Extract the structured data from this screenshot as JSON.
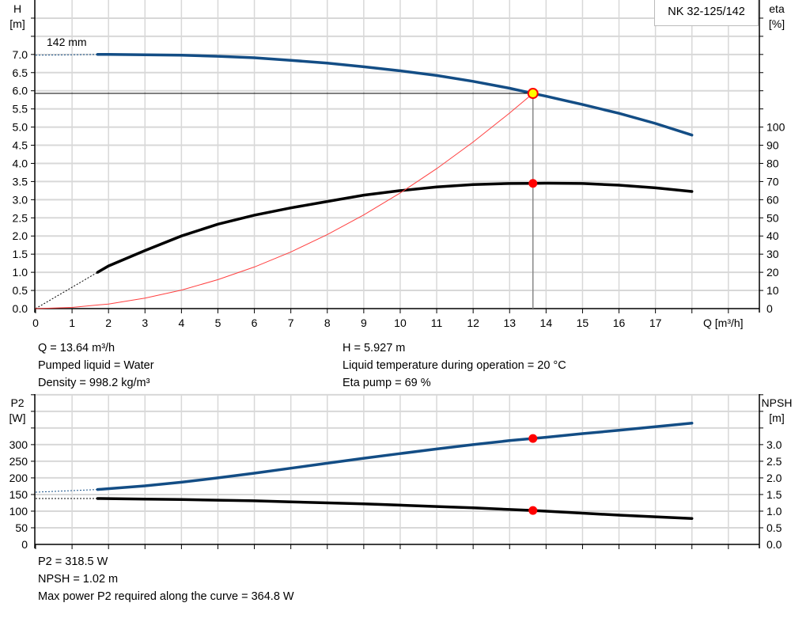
{
  "model": "NK 32-125/142",
  "impeller_label": "142 mm",
  "colors": {
    "head": "#134d85",
    "eta": "#000000",
    "system": "#ff4040",
    "p2": "#134d85",
    "npsh": "#000000",
    "grid": "#d8d8d8",
    "point_fill": "#ffff00",
    "point_edge": "#ff0000",
    "marker": "#ff0000"
  },
  "info_top": {
    "q": "Q = 13.64 m³/h",
    "liquid": "Pumped liquid = Water",
    "density": "Density = 998.2 kg/m³",
    "h": "H = 5.927 m",
    "temp": "Liquid temperature during operation = 20 °C",
    "eta": "Eta pump = 69 %"
  },
  "info_bottom": {
    "p2": "P2 = 318.5 W",
    "npsh": "NPSH = 1.02 m",
    "max_p2": "Max power P2 required along the curve = 364.8 W"
  },
  "chart_data": [
    {
      "type": "line",
      "xlabel": "Q [m³/h]",
      "ylabel": "H\n[m]",
      "ylabel_right": "eta\n[%]",
      "xlim": [
        0,
        19.85
      ],
      "ylim": [
        0,
        8.5
      ],
      "ylim_right": [
        0,
        170
      ],
      "grid": true,
      "x_ticks": [
        "0",
        "1",
        "2",
        "3",
        "4",
        "5",
        "6",
        "7",
        "8",
        "9",
        "10",
        "11",
        "12",
        "13",
        "14",
        "15",
        "16",
        "17"
      ],
      "y_ticks": [
        "0.0",
        "0.5",
        "1.0",
        "1.5",
        "2.0",
        "2.5",
        "3.0",
        "3.5",
        "4.0",
        "4.5",
        "5.0",
        "5.5",
        "6.0",
        "6.5",
        "7.0"
      ],
      "y_ticks_right": [
        "0",
        "10",
        "20",
        "30",
        "40",
        "50",
        "60",
        "70",
        "80",
        "90",
        "100"
      ],
      "series": [
        {
          "key": "head",
          "axis": "left",
          "x": [
            1.7,
            2,
            3,
            4,
            5,
            6,
            7,
            8,
            9,
            10,
            11,
            12,
            13,
            13.64,
            14,
            15,
            16,
            17,
            18
          ],
          "y": [
            7.0,
            7.0,
            6.99,
            6.98,
            6.95,
            6.91,
            6.84,
            6.76,
            6.66,
            6.55,
            6.42,
            6.26,
            6.07,
            5.927,
            5.85,
            5.62,
            5.38,
            5.1,
            4.78
          ],
          "extrapolated": {
            "x": [
              0,
              1.7
            ],
            "y": [
              6.98,
              7.0
            ]
          }
        },
        {
          "key": "eta",
          "axis": "right",
          "x": [
            1.7,
            2,
            3,
            4,
            5,
            6,
            7,
            8,
            9,
            10,
            11,
            12,
            13,
            13.64,
            14,
            15,
            16,
            17,
            18
          ],
          "y": [
            20,
            23.5,
            32,
            40,
            46.5,
            51.5,
            55.5,
            59,
            62.5,
            65,
            67,
            68.3,
            68.9,
            69,
            69.1,
            68.9,
            68,
            66.5,
            64.5
          ],
          "extrapolated": {
            "x": [
              0,
              1.7
            ],
            "y": [
              0,
              20
            ]
          }
        },
        {
          "key": "system",
          "axis": "left",
          "x": [
            0,
            1,
            2,
            3,
            4,
            5,
            6,
            7,
            8,
            9,
            10,
            11,
            12,
            13,
            13.64
          ],
          "y": [
            0,
            0.032,
            0.127,
            0.287,
            0.51,
            0.797,
            1.147,
            1.561,
            2.039,
            2.581,
            3.186,
            3.855,
            4.588,
            5.385,
            5.927
          ]
        }
      ],
      "operating_point": {
        "q": 13.64,
        "h": 5.927,
        "eta": 69
      }
    },
    {
      "type": "line",
      "ylabel": "P2\n[W]",
      "ylabel_right": "NPSH\n[m]",
      "xlim": [
        0,
        19.85
      ],
      "ylim": [
        0,
        452
      ],
      "ylim_right": [
        0,
        4.52
      ],
      "grid": true,
      "y_ticks": [
        "0",
        "50",
        "100",
        "150",
        "200",
        "250",
        "300"
      ],
      "y_ticks_right": [
        "0.0",
        "0.5",
        "1.0",
        "1.5",
        "2.0",
        "2.5",
        "3.0"
      ],
      "series": [
        {
          "key": "p2",
          "axis": "left",
          "x": [
            1.7,
            3,
            4,
            5,
            6,
            7,
            8,
            9,
            10,
            11,
            12,
            13,
            13.64,
            14,
            15,
            16,
            17,
            18
          ],
          "y": [
            165,
            176,
            187,
            200,
            214,
            229,
            244,
            259,
            273,
            287,
            300,
            312,
            318.5,
            322,
            333,
            343,
            354,
            364.8
          ],
          "extrapolated": {
            "x": [
              0,
              1.7
            ],
            "y": [
              157,
              165
            ]
          }
        },
        {
          "key": "npsh",
          "axis": "right",
          "x": [
            1.7,
            3,
            4,
            5,
            6,
            7,
            8,
            9,
            10,
            11,
            12,
            13,
            13.64,
            14,
            15,
            16,
            17,
            18
          ],
          "y": [
            1.38,
            1.36,
            1.35,
            1.33,
            1.31,
            1.28,
            1.25,
            1.22,
            1.18,
            1.14,
            1.1,
            1.05,
            1.02,
            1.0,
            0.94,
            0.88,
            0.83,
            0.78
          ],
          "extrapolated": {
            "x": [
              0,
              1.7
            ],
            "y": [
              1.38,
              1.38
            ]
          }
        }
      ],
      "operating_point": {
        "q": 13.64,
        "p2": 318.5,
        "npsh": 1.02
      }
    }
  ]
}
